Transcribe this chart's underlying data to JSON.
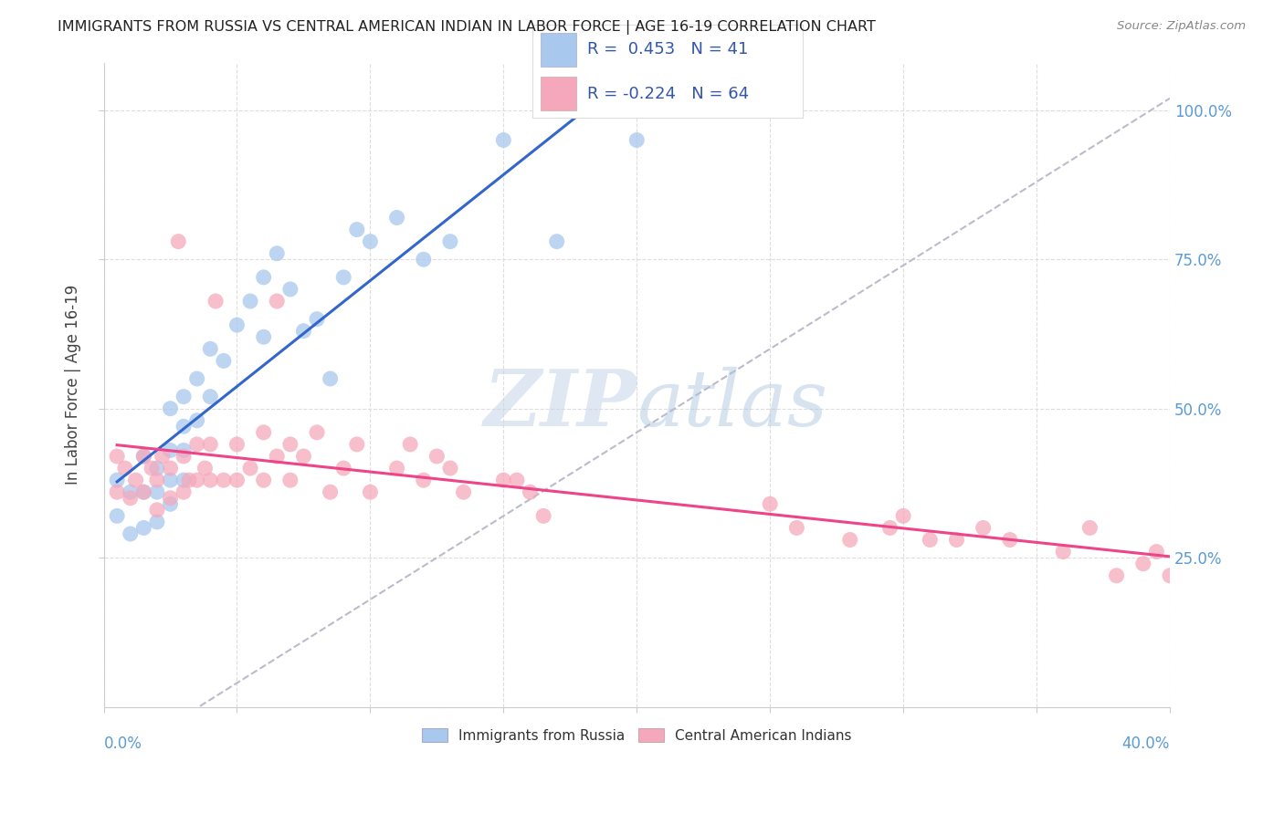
{
  "title": "IMMIGRANTS FROM RUSSIA VS CENTRAL AMERICAN INDIAN IN LABOR FORCE | AGE 16-19 CORRELATION CHART",
  "source": "Source: ZipAtlas.com",
  "ylabel": "In Labor Force | Age 16-19",
  "R_blue": 0.453,
  "N_blue": 41,
  "R_pink": -0.224,
  "N_pink": 64,
  "blue_color": "#A8C8EE",
  "pink_color": "#F5A8BB",
  "trendline_blue": "#3366CC",
  "trendline_pink": "#EE4488",
  "trendline_dashed_color": "#BBBBCC",
  "background": "#FFFFFF",
  "blue_scatter_x": [
    0.005,
    0.005,
    0.01,
    0.01,
    0.015,
    0.015,
    0.015,
    0.02,
    0.02,
    0.02,
    0.025,
    0.025,
    0.025,
    0.025,
    0.03,
    0.03,
    0.03,
    0.03,
    0.035,
    0.035,
    0.04,
    0.04,
    0.045,
    0.05,
    0.055,
    0.06,
    0.06,
    0.065,
    0.07,
    0.075,
    0.08,
    0.085,
    0.09,
    0.095,
    0.1,
    0.11,
    0.12,
    0.13,
    0.15,
    0.17,
    0.2
  ],
  "blue_scatter_y": [
    0.38,
    0.32,
    0.36,
    0.29,
    0.42,
    0.36,
    0.3,
    0.4,
    0.36,
    0.31,
    0.5,
    0.43,
    0.38,
    0.34,
    0.52,
    0.47,
    0.43,
    0.38,
    0.55,
    0.48,
    0.6,
    0.52,
    0.58,
    0.64,
    0.68,
    0.72,
    0.62,
    0.76,
    0.7,
    0.63,
    0.65,
    0.55,
    0.72,
    0.8,
    0.78,
    0.82,
    0.75,
    0.78,
    0.95,
    0.78,
    0.95
  ],
  "pink_scatter_x": [
    0.005,
    0.005,
    0.008,
    0.01,
    0.012,
    0.015,
    0.015,
    0.018,
    0.02,
    0.02,
    0.022,
    0.025,
    0.025,
    0.028,
    0.03,
    0.03,
    0.032,
    0.035,
    0.035,
    0.038,
    0.04,
    0.04,
    0.042,
    0.045,
    0.05,
    0.05,
    0.055,
    0.06,
    0.06,
    0.065,
    0.065,
    0.07,
    0.07,
    0.075,
    0.08,
    0.085,
    0.09,
    0.095,
    0.1,
    0.11,
    0.115,
    0.12,
    0.125,
    0.13,
    0.135,
    0.15,
    0.155,
    0.16,
    0.165,
    0.25,
    0.26,
    0.28,
    0.295,
    0.3,
    0.31,
    0.32,
    0.33,
    0.34,
    0.36,
    0.37,
    0.38,
    0.39,
    0.395,
    0.4
  ],
  "pink_scatter_y": [
    0.42,
    0.36,
    0.4,
    0.35,
    0.38,
    0.42,
    0.36,
    0.4,
    0.38,
    0.33,
    0.42,
    0.4,
    0.35,
    0.78,
    0.42,
    0.36,
    0.38,
    0.44,
    0.38,
    0.4,
    0.44,
    0.38,
    0.68,
    0.38,
    0.44,
    0.38,
    0.4,
    0.46,
    0.38,
    0.42,
    0.68,
    0.44,
    0.38,
    0.42,
    0.46,
    0.36,
    0.4,
    0.44,
    0.36,
    0.4,
    0.44,
    0.38,
    0.42,
    0.4,
    0.36,
    0.38,
    0.38,
    0.36,
    0.32,
    0.34,
    0.3,
    0.28,
    0.3,
    0.32,
    0.28,
    0.28,
    0.3,
    0.28,
    0.26,
    0.3,
    0.22,
    0.24,
    0.26,
    0.22
  ],
  "xlim": [
    0.0,
    0.4
  ],
  "ylim": [
    0.0,
    1.08
  ],
  "yticks": [
    0.25,
    0.5,
    0.75,
    1.0
  ],
  "ytick_labels": [
    "25.0%",
    "50.0%",
    "75.0%",
    "100.0%"
  ],
  "xtick_label_left": "0.0%",
  "xtick_label_right": "40.0%",
  "legend_label_blue": "Immigrants from Russia",
  "legend_label_pink": "Central American Indians"
}
